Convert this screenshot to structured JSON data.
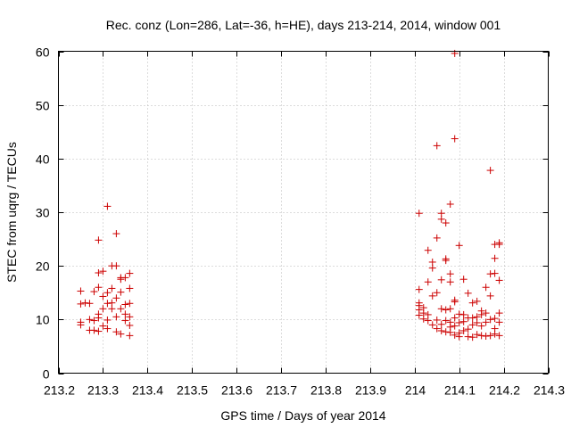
{
  "chart_data": {
    "type": "scatter",
    "title": "Rec. conz (Lon=286, Lat=-36, h=HE), days 213-214, 2014, window 001",
    "xlabel": "GPS time / Days of year 2014",
    "ylabel": "STEC from uqrg / TECUs",
    "xlim": [
      213.2,
      214.3
    ],
    "ylim": [
      0,
      60
    ],
    "x_ticks": [
      213.2,
      213.3,
      213.4,
      213.5,
      213.6,
      213.7,
      213.8,
      213.9,
      214,
      214.1,
      214.2,
      214.3
    ],
    "x_tick_labels": [
      "213.2",
      "213.3",
      "213.4",
      "213.5",
      "213.6",
      "213.7",
      "213.8",
      "213.9",
      "214",
      "214.1",
      "214.2",
      "214.3"
    ],
    "y_ticks": [
      0,
      10,
      20,
      30,
      40,
      50,
      60
    ],
    "y_tick_labels": [
      "0",
      "10",
      "20",
      "30",
      "40",
      "50",
      "60"
    ],
    "grid": true,
    "marker": "+",
    "color": "#cc0000",
    "points": [
      [
        213.25,
        15.3
      ],
      [
        213.25,
        12.9
      ],
      [
        213.25,
        9.5
      ],
      [
        213.25,
        9.0
      ],
      [
        213.26,
        13.1
      ],
      [
        213.27,
        10.0
      ],
      [
        213.27,
        8.0
      ],
      [
        213.27,
        13.0
      ],
      [
        213.28,
        15.2
      ],
      [
        213.28,
        9.8
      ],
      [
        213.28,
        8.0
      ],
      [
        213.29,
        24.8
      ],
      [
        213.29,
        18.7
      ],
      [
        213.29,
        16.0
      ],
      [
        213.29,
        11.0
      ],
      [
        213.29,
        7.8
      ],
      [
        213.29,
        10.3
      ],
      [
        213.3,
        19.0
      ],
      [
        213.3,
        14.3
      ],
      [
        213.3,
        12.0
      ],
      [
        213.3,
        8.8
      ],
      [
        213.31,
        31.1
      ],
      [
        213.31,
        15.0
      ],
      [
        213.31,
        13.0
      ],
      [
        213.31,
        9.9
      ],
      [
        213.31,
        8.3
      ],
      [
        213.32,
        20.0
      ],
      [
        213.32,
        15.8
      ],
      [
        213.32,
        13.1
      ],
      [
        213.32,
        12.0
      ],
      [
        213.33,
        26.0
      ],
      [
        213.33,
        20.0
      ],
      [
        213.33,
        14.0
      ],
      [
        213.33,
        10.5
      ],
      [
        213.33,
        7.7
      ],
      [
        213.34,
        17.8
      ],
      [
        213.34,
        17.5
      ],
      [
        213.34,
        15.1
      ],
      [
        213.34,
        12.0
      ],
      [
        213.34,
        7.3
      ],
      [
        213.35,
        17.8
      ],
      [
        213.35,
        12.8
      ],
      [
        213.35,
        11.0
      ],
      [
        213.35,
        9.8
      ],
      [
        213.36,
        18.6
      ],
      [
        213.36,
        15.8
      ],
      [
        213.36,
        13.0
      ],
      [
        213.36,
        10.5
      ],
      [
        213.36,
        8.9
      ],
      [
        213.36,
        7.0
      ],
      [
        214.01,
        29.8
      ],
      [
        214.01,
        15.6
      ],
      [
        214.01,
        13.1
      ],
      [
        214.01,
        12.6
      ],
      [
        214.01,
        11.8
      ],
      [
        214.01,
        10.8
      ],
      [
        214.02,
        12.2
      ],
      [
        214.02,
        11.2
      ],
      [
        214.02,
        10.1
      ],
      [
        214.03,
        22.9
      ],
      [
        214.03,
        17.0
      ],
      [
        214.03,
        10.9
      ],
      [
        214.03,
        9.8
      ],
      [
        214.04,
        20.7
      ],
      [
        214.04,
        19.6
      ],
      [
        214.04,
        14.4
      ],
      [
        214.04,
        9.0
      ],
      [
        214.05,
        42.4
      ],
      [
        214.05,
        25.2
      ],
      [
        214.05,
        15.0
      ],
      [
        214.05,
        9.9
      ],
      [
        214.05,
        8.3
      ],
      [
        214.06,
        29.8
      ],
      [
        214.06,
        28.7
      ],
      [
        214.06,
        17.4
      ],
      [
        214.06,
        12.0
      ],
      [
        214.06,
        9.1
      ],
      [
        214.06,
        7.9
      ],
      [
        214.07,
        28.0
      ],
      [
        214.07,
        21.3
      ],
      [
        214.07,
        21.0
      ],
      [
        214.07,
        11.8
      ],
      [
        214.07,
        9.8
      ],
      [
        214.07,
        7.7
      ],
      [
        214.08,
        31.5
      ],
      [
        214.08,
        18.5
      ],
      [
        214.08,
        17.0
      ],
      [
        214.08,
        12.0
      ],
      [
        214.08,
        9.5
      ],
      [
        214.08,
        8.6
      ],
      [
        214.08,
        7.6
      ],
      [
        214.09,
        59.6
      ],
      [
        214.09,
        43.7
      ],
      [
        214.09,
        13.6
      ],
      [
        214.09,
        13.3
      ],
      [
        214.09,
        10.3
      ],
      [
        214.09,
        8.8
      ],
      [
        214.09,
        7.1
      ],
      [
        214.1,
        23.8
      ],
      [
        214.1,
        11.0
      ],
      [
        214.1,
        9.4
      ],
      [
        214.1,
        7.5
      ],
      [
        214.1,
        6.8
      ],
      [
        214.11,
        17.5
      ],
      [
        214.11,
        10.9
      ],
      [
        214.11,
        9.6
      ],
      [
        214.11,
        7.9
      ],
      [
        214.12,
        14.9
      ],
      [
        214.12,
        10.3
      ],
      [
        214.12,
        8.2
      ],
      [
        214.12,
        6.8
      ],
      [
        214.13,
        13.1
      ],
      [
        214.13,
        10.3
      ],
      [
        214.13,
        9.0
      ],
      [
        214.13,
        6.7
      ],
      [
        214.14,
        13.4
      ],
      [
        214.14,
        10.5
      ],
      [
        214.14,
        9.4
      ],
      [
        214.14,
        7.2
      ],
      [
        214.15,
        11.6
      ],
      [
        214.15,
        10.9
      ],
      [
        214.15,
        8.8
      ],
      [
        214.15,
        7.0
      ],
      [
        214.16,
        16.0
      ],
      [
        214.16,
        11.2
      ],
      [
        214.16,
        9.5
      ],
      [
        214.16,
        6.9
      ],
      [
        214.17,
        18.5
      ],
      [
        214.17,
        37.8
      ],
      [
        214.17,
        14.4
      ],
      [
        214.17,
        10.0
      ],
      [
        214.17,
        7.0
      ],
      [
        214.18,
        24.0
      ],
      [
        214.18,
        21.4
      ],
      [
        214.18,
        18.6
      ],
      [
        214.18,
        10.2
      ],
      [
        214.18,
        8.3
      ],
      [
        214.18,
        7.3
      ],
      [
        214.19,
        24.3
      ],
      [
        214.19,
        24.0
      ],
      [
        214.19,
        17.3
      ],
      [
        214.19,
        11.2
      ],
      [
        214.19,
        9.5
      ],
      [
        214.19,
        7.0
      ]
    ]
  }
}
